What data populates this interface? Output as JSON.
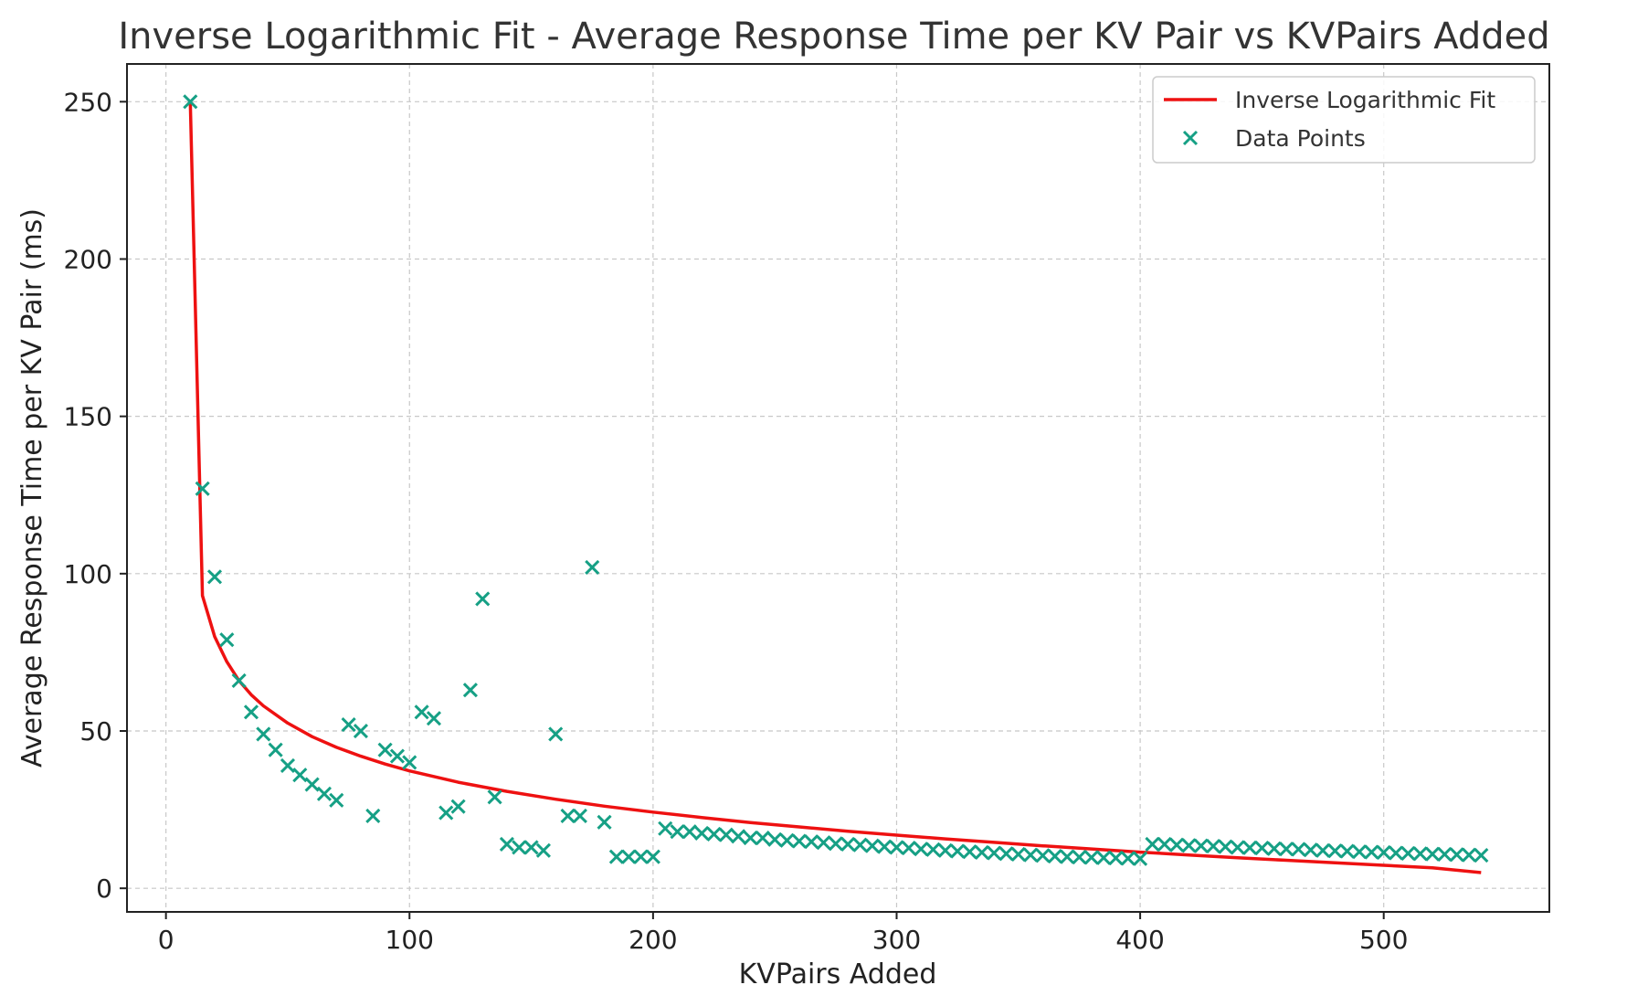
{
  "chart_data": {
    "type": "scatter",
    "title": "Inverse Logarithmic Fit - Average Response Time per KV Pair vs KVPairs Added",
    "xlabel": "KVPairs Added",
    "ylabel": "Average Response Time per KV Pair (ms)",
    "xlim": [
      -16,
      568
    ],
    "ylim": [
      -7.5,
      262
    ],
    "xticks": [
      0,
      100,
      200,
      300,
      400,
      500
    ],
    "yticks": [
      0,
      50,
      100,
      150,
      200,
      250
    ],
    "grid": true,
    "legend_position": "top-right",
    "colors": {
      "fit": "#ee1111",
      "points": "#16a085"
    },
    "series": [
      {
        "name": "Inverse Logarithmic Fit",
        "kind": "line",
        "x": [
          10,
          15,
          20,
          25,
          30,
          35,
          40,
          50,
          60,
          70,
          80,
          90,
          100,
          120,
          140,
          160,
          180,
          200,
          220,
          240,
          260,
          280,
          300,
          320,
          340,
          360,
          380,
          400,
          420,
          440,
          460,
          480,
          500,
          520,
          540
        ],
        "y": [
          250,
          93,
          80,
          72,
          66,
          61.5,
          58,
          52.5,
          48.2,
          44.8,
          42,
          39.5,
          37.3,
          33.7,
          30.8,
          28.3,
          26.1,
          24.2,
          22.5,
          20.9,
          19.5,
          18.1,
          16.9,
          15.7,
          14.6,
          13.5,
          12.5,
          11.5,
          10.6,
          9.7,
          8.9,
          8.1,
          7.3,
          6.5,
          5
        ]
      },
      {
        "name": "Data Points",
        "kind": "scatter",
        "x": [
          10,
          15,
          20,
          25,
          30,
          35,
          40,
          45,
          50,
          55,
          60,
          65,
          70,
          75,
          80,
          85,
          90,
          95,
          100,
          105,
          110,
          115,
          120,
          125,
          130,
          135,
          140,
          145,
          150,
          155,
          160,
          165,
          170,
          175,
          180,
          185,
          190,
          195,
          200,
          205,
          210,
          215,
          220,
          225,
          230,
          235,
          240,
          245,
          250,
          255,
          260,
          265,
          270,
          275,
          280,
          285,
          290,
          295,
          300,
          305,
          310,
          315,
          320,
          325,
          330,
          335,
          340,
          345,
          350,
          355,
          360,
          365,
          370,
          375,
          380,
          385,
          390,
          395,
          400,
          405,
          410,
          415,
          420,
          425,
          430,
          435,
          440,
          445,
          450,
          455,
          460,
          465,
          470,
          475,
          480,
          485,
          490,
          495,
          500,
          505,
          510,
          515,
          520,
          525,
          530,
          535,
          540
        ],
        "y": [
          250,
          127,
          99,
          79,
          66,
          56,
          49,
          44,
          39,
          36,
          33,
          30,
          28,
          52,
          50,
          23,
          44,
          42,
          40,
          56,
          54,
          24,
          26,
          63,
          92,
          29,
          14,
          13,
          13,
          12,
          49,
          23,
          23,
          102,
          21,
          10,
          10,
          10,
          10,
          19,
          18,
          18,
          17.5,
          17.2,
          17,
          16.5,
          16,
          16,
          15.5,
          15.2,
          15,
          14.8,
          14.5,
          14.2,
          14,
          13.8,
          13.5,
          13.2,
          13,
          12.8,
          12.5,
          12.3,
          12,
          11.8,
          11.6,
          11.4,
          11.2,
          11,
          10.8,
          10.6,
          10.4,
          10.2,
          10,
          9.9,
          9.8,
          9.7,
          9.6,
          9.5,
          9.4,
          14,
          14,
          13.8,
          13.6,
          13.5,
          13.4,
          13.2,
          13,
          12.9,
          12.8,
          12.6,
          12.5,
          12.4,
          12.2,
          12,
          11.9,
          11.8,
          11.6,
          11.5,
          11.4,
          11.2,
          11.1,
          11,
          10.9,
          10.8,
          10.7,
          10.6,
          10.5
        ]
      }
    ]
  }
}
